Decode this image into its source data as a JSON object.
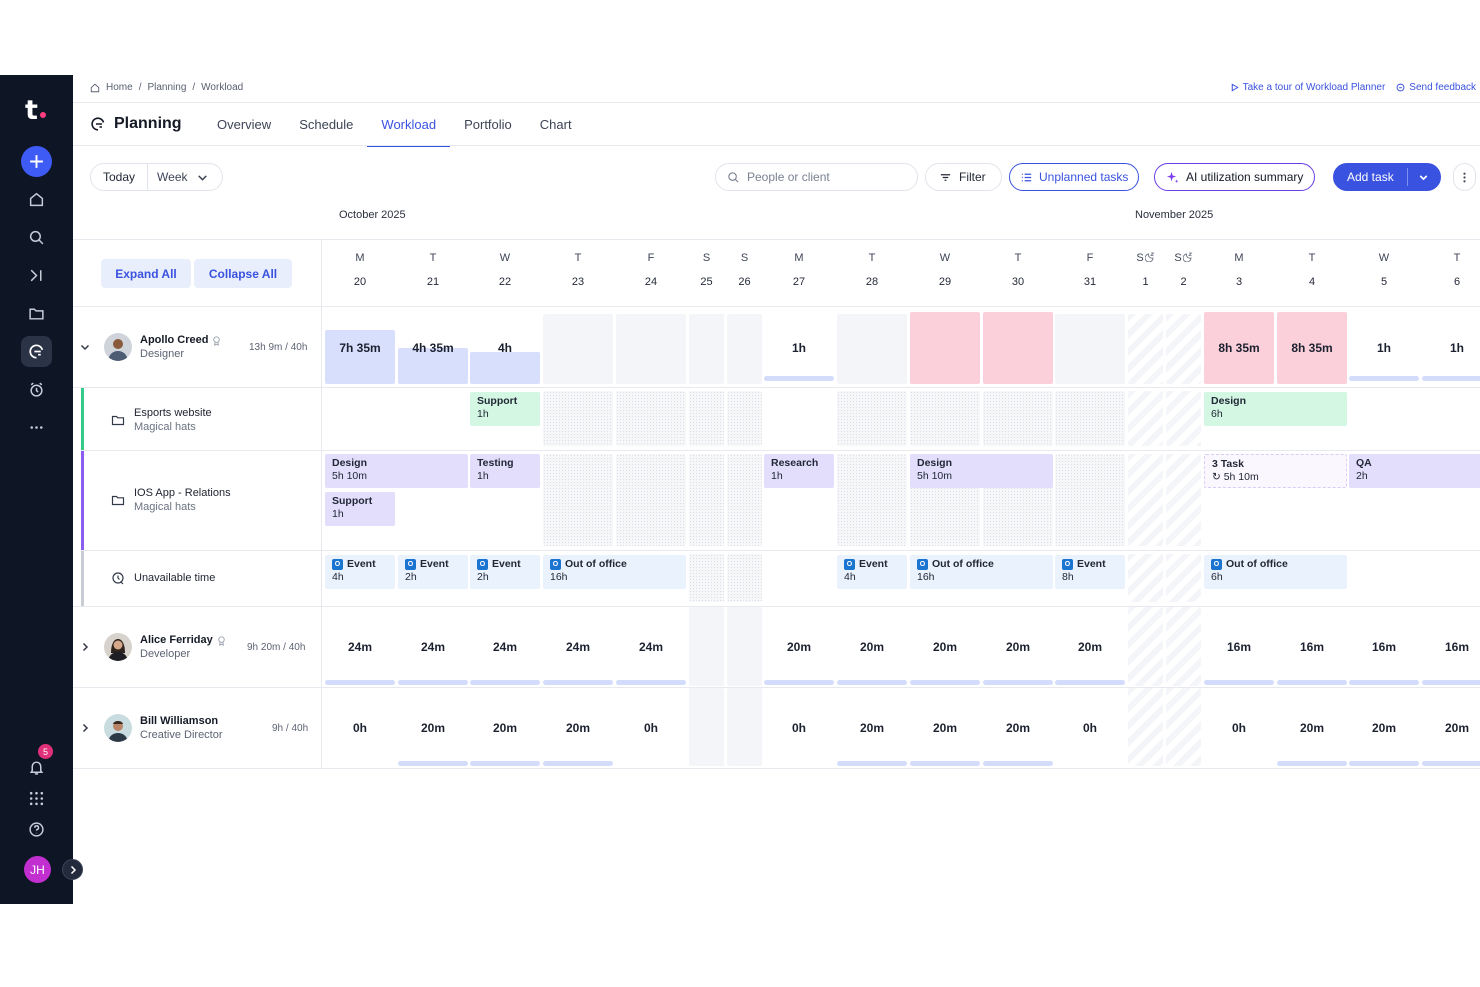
{
  "sidebar": {
    "logo": "t",
    "notification_count": "5",
    "user_initials": "JH"
  },
  "breadcrumb": {
    "home": "Home",
    "planning": "Planning",
    "current": "Workload"
  },
  "top_links": {
    "tour": "Take a tour of Workload Planner",
    "feedback": "Send feedback"
  },
  "header": {
    "title": "Planning",
    "tabs": [
      "Overview",
      "Schedule",
      "Workload",
      "Portfolio",
      "Chart"
    ],
    "active_tab": "Workload"
  },
  "toolbar": {
    "today": "Today",
    "period": "Week",
    "search_placeholder": "People or client",
    "filter": "Filter",
    "unplanned": "Unplanned tasks",
    "ai_summary": "AI utilization summary",
    "add_task": "Add task"
  },
  "calendar": {
    "months": [
      "October 2025",
      "November 2025"
    ],
    "days": [
      {
        "d": "M",
        "n": "20"
      },
      {
        "d": "T",
        "n": "21"
      },
      {
        "d": "W",
        "n": "22"
      },
      {
        "d": "T",
        "n": "23"
      },
      {
        "d": "F",
        "n": "24"
      },
      {
        "d": "S",
        "n": "25"
      },
      {
        "d": "S",
        "n": "26"
      },
      {
        "d": "M",
        "n": "27"
      },
      {
        "d": "T",
        "n": "28"
      },
      {
        "d": "W",
        "n": "29"
      },
      {
        "d": "T",
        "n": "30"
      },
      {
        "d": "F",
        "n": "31"
      },
      {
        "d": "S",
        "n": "1"
      },
      {
        "d": "S",
        "n": "2"
      },
      {
        "d": "M",
        "n": "3"
      },
      {
        "d": "T",
        "n": "4"
      },
      {
        "d": "W",
        "n": "5"
      },
      {
        "d": "T",
        "n": "6"
      }
    ]
  },
  "controls": {
    "expand_all": "Expand All",
    "collapse_all": "Collapse All"
  },
  "people": [
    {
      "name": "Apollo Creed",
      "role": "Designer",
      "hours": "13h 9m / 40h"
    },
    {
      "name": "Alice Ferriday",
      "role": "Developer",
      "hours": "9h 20m / 40h"
    },
    {
      "name": "Bill Williamson",
      "role": "Creative Director",
      "hours": "9h / 40h"
    }
  ],
  "projects": [
    {
      "name": "Esports website",
      "client": "Magical hats",
      "color": "#35c98a"
    },
    {
      "name": "IOS App - Relations",
      "client": "Magical hats",
      "color": "#8a5cf0"
    },
    {
      "name": "Unavailable time",
      "client": "",
      "color": "#c8ccd4"
    }
  ],
  "apollo_daily": [
    "7h 35m",
    "4h 35m",
    "4h",
    "",
    "",
    "",
    "",
    "1h",
    "",
    "",
    "",
    "",
    "",
    "",
    "8h 35m",
    "8h 35m",
    "1h",
    "1h"
  ],
  "apollo_utilization": [
    0.75,
    0.5,
    0.45,
    0,
    0,
    0,
    0,
    0.1,
    0,
    1,
    1,
    0,
    0,
    0,
    1,
    1,
    0.1,
    0.1
  ],
  "alice_daily": [
    "24m",
    "24m",
    "24m",
    "24m",
    "24m",
    "",
    "",
    "20m",
    "20m",
    "20m",
    "20m",
    "20m",
    "",
    "",
    "16m",
    "16m",
    "16m",
    "16m"
  ],
  "bill_daily": [
    "0h",
    "20m",
    "20m",
    "20m",
    "0h",
    "",
    "",
    "0h",
    "20m",
    "20m",
    "20m",
    "0h",
    "",
    "",
    "0h",
    "20m",
    "20m",
    "20m"
  ],
  "tasks": {
    "esports": [
      {
        "day": 2,
        "span": 1,
        "title": "Support",
        "time": "1h",
        "style": "grn"
      },
      {
        "day": 14,
        "span": 2,
        "title": "Design",
        "time": "6h",
        "style": "grn"
      }
    ],
    "ios": [
      {
        "day": 0,
        "span": 2,
        "title": "Design",
        "time": "5h 10m",
        "style": "lav",
        "row": 0
      },
      {
        "day": 2,
        "span": 1,
        "title": "Testing",
        "time": "1h",
        "style": "lav",
        "row": 0
      },
      {
        "day": 0,
        "span": 1,
        "title": "Support",
        "time": "1h",
        "style": "lav",
        "row": 1
      },
      {
        "day": 7,
        "span": 1,
        "title": "Research",
        "time": "1h",
        "style": "lav",
        "row": 0
      },
      {
        "day": 9,
        "span": 2,
        "title": "Design",
        "time": "5h 10m",
        "style": "lav",
        "row": 0
      },
      {
        "day": 14,
        "span": 2,
        "title": "3 Task",
        "time": "5h 10m",
        "style": "dashed",
        "row": 0
      },
      {
        "day": 16,
        "span": 2,
        "title": "QA",
        "time": "2h",
        "style": "lav",
        "row": 0
      }
    ],
    "unavailable": [
      {
        "day": 0,
        "span": 1,
        "title": "Event",
        "time": "4h"
      },
      {
        "day": 1,
        "span": 1,
        "title": "Event",
        "time": "2h"
      },
      {
        "day": 2,
        "span": 1,
        "title": "Event",
        "time": "2h"
      },
      {
        "day": 3,
        "span": 2,
        "title": "Out of office",
        "time": "16h"
      },
      {
        "day": 8,
        "span": 1,
        "title": "Event",
        "time": "4h"
      },
      {
        "day": 9,
        "span": 2,
        "title": "Out of office",
        "time": "16h"
      },
      {
        "day": 11,
        "span": 1,
        "title": "Event",
        "time": "8h"
      },
      {
        "day": 14,
        "span": 2,
        "title": "Out of office",
        "time": "6h"
      }
    ]
  },
  "colors": {
    "accent": "#3a52e0",
    "sidebar": "#0e1525",
    "overbooked": "#fcd0da",
    "booked": "#d7dffc"
  }
}
